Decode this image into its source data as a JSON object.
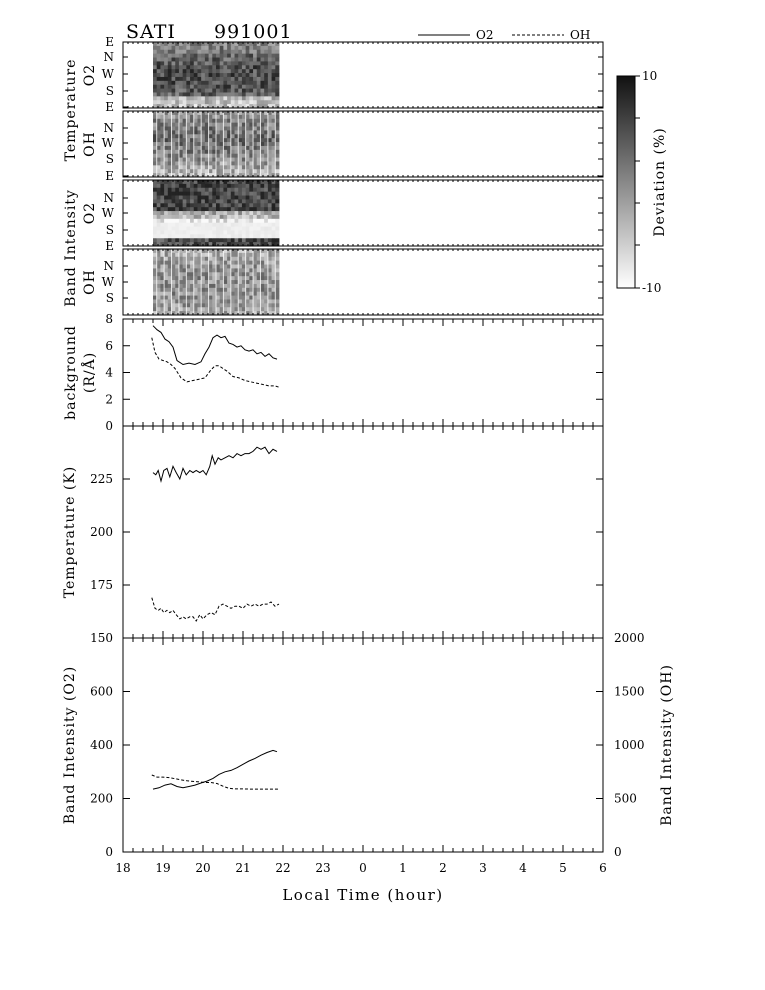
{
  "header": {
    "instrument": "SATI",
    "date": "991001",
    "legend": [
      {
        "label": "O2",
        "style": "solid"
      },
      {
        "label": "OH",
        "style": "dashed"
      }
    ]
  },
  "x_axis": {
    "label": "Local Time (hour)",
    "ticks": [
      "18",
      "19",
      "20",
      "21",
      "22",
      "23",
      "0",
      "1",
      "2",
      "3",
      "4",
      "5",
      "6"
    ],
    "data_start_hour": 18.75,
    "data_end_hour": 21.9
  },
  "colorbar": {
    "label": "Deviation (%)",
    "min_label": "-10",
    "max_label": "10",
    "range": [
      -10,
      10
    ]
  },
  "image_panels": [
    {
      "name": "temperature-o2",
      "ylabel_top": "Temperature",
      "ylabel_bottom": "O2",
      "rows": [
        "E",
        "N",
        "W",
        "S",
        "E"
      ]
    },
    {
      "name": "temperature-oh",
      "ylabel_top": "",
      "ylabel_bottom": "OH",
      "rows": [
        "N",
        "W",
        "S",
        "E"
      ]
    },
    {
      "name": "intensity-o2",
      "ylabel_top": "Band Intensity",
      "ylabel_bottom": "O2",
      "rows": [
        "N",
        "W",
        "S",
        "E"
      ]
    },
    {
      "name": "intensity-oh",
      "ylabel_top": "",
      "ylabel_bottom": "OH",
      "rows": [
        "N",
        "W",
        "S"
      ]
    }
  ],
  "chart_data": [
    {
      "type": "line",
      "ylabel_top": "background",
      "ylabel_bottom": "(R/Å)",
      "ylim": [
        0,
        8
      ],
      "yticks": [
        "0",
        "2",
        "4",
        "6",
        "8"
      ],
      "series": [
        {
          "name": "O2",
          "style": "solid",
          "x": [
            18.75,
            18.85,
            18.95,
            19.05,
            19.15,
            19.25,
            19.35,
            19.5,
            19.65,
            19.8,
            19.95,
            20.05,
            20.15,
            20.25,
            20.35,
            20.45,
            20.55,
            20.65,
            20.75,
            20.85,
            20.95,
            21.05,
            21.15,
            21.25,
            21.35,
            21.45,
            21.55,
            21.65,
            21.75,
            21.85
          ],
          "y": [
            7.5,
            7.2,
            7.0,
            6.5,
            6.3,
            5.9,
            4.9,
            4.6,
            4.7,
            4.6,
            4.8,
            5.4,
            5.9,
            6.6,
            6.8,
            6.6,
            6.7,
            6.2,
            6.1,
            5.9,
            6.0,
            5.7,
            5.6,
            5.7,
            5.4,
            5.5,
            5.2,
            5.4,
            5.1,
            5.0
          ]
        },
        {
          "name": "OH",
          "style": "dashed",
          "x": [
            18.72,
            18.8,
            18.9,
            19.0,
            19.1,
            19.2,
            19.3,
            19.45,
            19.6,
            19.75,
            19.9,
            20.05,
            20.2,
            20.3,
            20.4,
            20.5,
            20.6,
            20.75,
            20.9,
            21.05,
            21.2,
            21.35,
            21.5,
            21.65,
            21.8,
            21.9
          ],
          "y": [
            6.6,
            5.5,
            5.0,
            4.9,
            4.8,
            4.6,
            4.3,
            3.6,
            3.3,
            3.4,
            3.5,
            3.6,
            4.2,
            4.5,
            4.5,
            4.3,
            4.1,
            3.7,
            3.6,
            3.4,
            3.3,
            3.2,
            3.1,
            3.0,
            3.0,
            2.9
          ]
        }
      ]
    },
    {
      "type": "line",
      "ylabel_top": "Temperature (K)",
      "ylim": [
        150,
        250
      ],
      "yticks": [
        "150",
        "175",
        "200",
        "225"
      ],
      "series": [
        {
          "name": "O2",
          "style": "solid",
          "x": [
            18.75,
            18.82,
            18.88,
            18.95,
            19.02,
            19.1,
            19.17,
            19.25,
            19.33,
            19.42,
            19.5,
            19.58,
            19.67,
            19.75,
            19.83,
            19.92,
            20.0,
            20.08,
            20.17,
            20.23,
            20.3,
            20.38,
            20.45,
            20.55,
            20.65,
            20.75,
            20.85,
            20.95,
            21.05,
            21.15,
            21.25,
            21.35,
            21.45,
            21.55,
            21.65,
            21.75,
            21.85
          ],
          "y": [
            228,
            227,
            229,
            224,
            229,
            230,
            226,
            231,
            228,
            225,
            230,
            227,
            229,
            228,
            229,
            228,
            229,
            227,
            231,
            236,
            232,
            235,
            234,
            235,
            236,
            235,
            237,
            236,
            237,
            237,
            238,
            240,
            239,
            240,
            237,
            239,
            238
          ]
        },
        {
          "name": "OH",
          "style": "dashed",
          "x": [
            18.72,
            18.8,
            18.88,
            18.95,
            19.02,
            19.1,
            19.17,
            19.25,
            19.33,
            19.42,
            19.5,
            19.58,
            19.67,
            19.75,
            19.83,
            19.92,
            20.0,
            20.1,
            20.2,
            20.3,
            20.4,
            20.5,
            20.6,
            20.7,
            20.8,
            20.9,
            21.0,
            21.1,
            21.2,
            21.3,
            21.4,
            21.5,
            21.6,
            21.7,
            21.8,
            21.9
          ],
          "y": [
            169,
            164,
            163,
            164,
            162,
            163,
            162,
            163,
            161,
            159,
            160,
            159,
            160,
            160,
            158,
            161,
            159,
            161,
            162,
            161,
            165,
            166,
            165,
            164,
            165,
            165,
            164,
            166,
            165,
            166,
            165,
            166,
            166,
            167,
            165,
            166
          ]
        }
      ]
    },
    {
      "type": "line",
      "ylabel_left": "Band Intensity (O2)",
      "ylabel_right": "Band Intensity (OH)",
      "ylim_left": [
        0,
        800
      ],
      "yticks_left": [
        "0",
        "200",
        "400",
        "600"
      ],
      "ylim_right": [
        0,
        2000
      ],
      "yticks_right": [
        "0",
        "500",
        "1000",
        "1500",
        "2000"
      ],
      "series": [
        {
          "name": "O2",
          "style": "solid",
          "axis": "left",
          "x": [
            18.75,
            18.9,
            19.05,
            19.2,
            19.35,
            19.5,
            19.65,
            19.8,
            19.95,
            20.1,
            20.25,
            20.4,
            20.55,
            20.7,
            20.85,
            21.0,
            21.15,
            21.3,
            21.45,
            21.6,
            21.75,
            21.85
          ],
          "y": [
            235,
            240,
            250,
            255,
            245,
            240,
            245,
            250,
            258,
            265,
            275,
            290,
            300,
            305,
            315,
            328,
            340,
            350,
            362,
            372,
            380,
            375
          ]
        },
        {
          "name": "OH",
          "style": "dashed",
          "axis": "right",
          "x": [
            18.72,
            18.85,
            19.0,
            19.15,
            19.3,
            19.45,
            19.6,
            19.75,
            19.9,
            20.05,
            20.2,
            20.35,
            20.5,
            20.65,
            20.8,
            21.0,
            21.2,
            21.4,
            21.6,
            21.8,
            21.9
          ],
          "y": [
            720,
            700,
            700,
            695,
            685,
            675,
            665,
            660,
            655,
            650,
            650,
            640,
            615,
            595,
            590,
            590,
            588,
            588,
            588,
            588,
            588
          ]
        }
      ]
    }
  ]
}
